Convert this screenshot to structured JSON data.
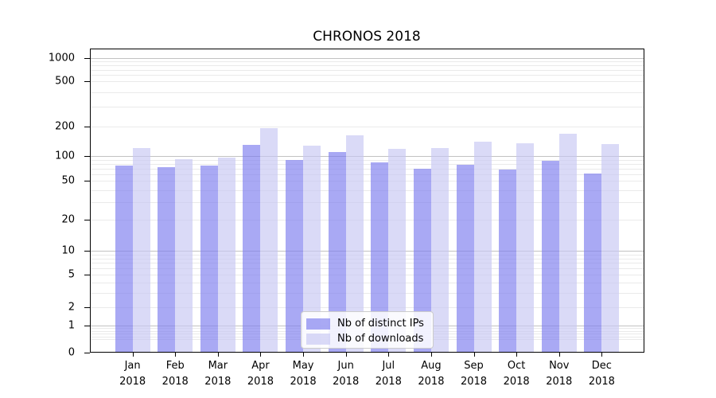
{
  "chart_data": {
    "type": "bar",
    "title": "CHRONOS 2018",
    "categories": [
      {
        "month": "Jan",
        "year": "2018"
      },
      {
        "month": "Feb",
        "year": "2018"
      },
      {
        "month": "Mar",
        "year": "2018"
      },
      {
        "month": "Apr",
        "year": "2018"
      },
      {
        "month": "May",
        "year": "2018"
      },
      {
        "month": "Jun",
        "year": "2018"
      },
      {
        "month": "Jul",
        "year": "2018"
      },
      {
        "month": "Aug",
        "year": "2018"
      },
      {
        "month": "Sep",
        "year": "2018"
      },
      {
        "month": "Oct",
        "year": "2018"
      },
      {
        "month": "Nov",
        "year": "2018"
      },
      {
        "month": "Dec",
        "year": "2018"
      }
    ],
    "series": [
      {
        "name": "Nb of distinct IPs",
        "color": "#7c7cee",
        "fill_alpha": 0.66,
        "values": [
          76,
          73,
          77,
          130,
          90,
          110,
          84,
          70,
          78,
          68,
          87,
          61
        ]
      },
      {
        "name": "Nb of downloads",
        "color": "#c7c7f3",
        "fill_alpha": 0.66,
        "values": [
          121,
          91,
          96,
          193,
          128,
          162,
          119,
          121,
          139,
          135,
          170,
          132
        ]
      }
    ],
    "xlabel": "",
    "ylabel": "",
    "yscale": "symlog",
    "yticks": [
      0,
      1,
      2,
      5,
      10,
      20,
      50,
      100,
      200,
      500,
      1000
    ],
    "ylim": [
      0,
      1330
    ],
    "grid": true,
    "legend_position": "lower center",
    "colors": {
      "major_grid": "#c2c2c2",
      "minor_grid": "#eaeaea",
      "spine": "#000000",
      "legend_border": "#cccccc",
      "background": "#ffffff"
    }
  }
}
